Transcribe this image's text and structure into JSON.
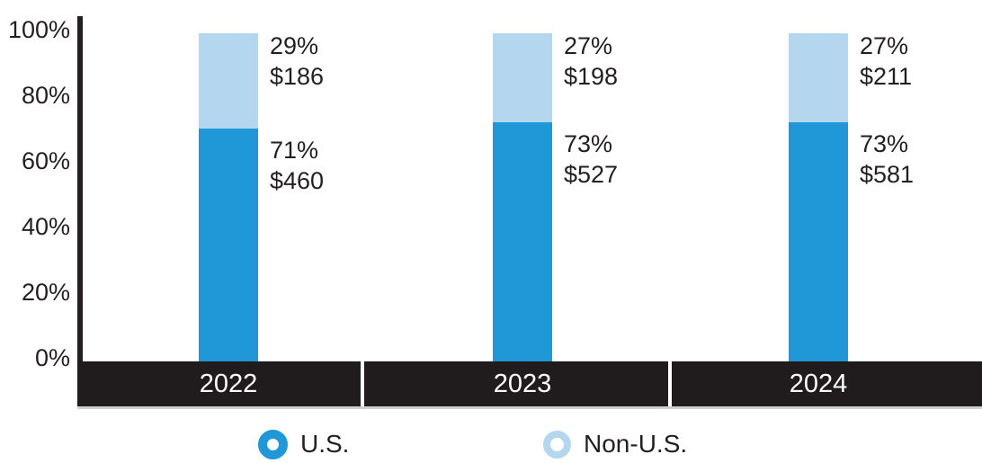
{
  "chart_data": {
    "type": "bar",
    "stacked": true,
    "title": "",
    "xlabel": "",
    "ylabel": "",
    "categories": [
      "2022",
      "2023",
      "2024"
    ],
    "series": [
      {
        "name": "U.S.",
        "color": "#2098d8",
        "values": [
          71,
          73,
          73
        ],
        "pct_labels": [
          "71%",
          "73%",
          "73%"
        ],
        "amount_labels": [
          "$460",
          "$527",
          "$581"
        ]
      },
      {
        "name": "Non-U.S.",
        "color": "#b5d6ef",
        "values": [
          29,
          27,
          27
        ],
        "pct_labels": [
          "29%",
          "27%",
          "27%"
        ],
        "amount_labels": [
          "$186",
          "$198",
          "$211"
        ]
      }
    ],
    "y_axis": {
      "ticks": [
        {
          "label": "100%",
          "value": 100
        },
        {
          "label": "80%",
          "value": 80
        },
        {
          "label": "60%",
          "value": 60
        },
        {
          "label": "40%",
          "value": 40
        },
        {
          "label": "20%",
          "value": 20
        },
        {
          "label": "0%",
          "value": 0
        }
      ]
    },
    "ylim": [
      0,
      100
    ],
    "grid": false,
    "legend_position": "bottom"
  },
  "colors": {
    "us": "#2098d8",
    "non_us": "#b5d6ef",
    "axis": "#231f20",
    "label_text": "#231f20",
    "band_background": "#201c1d",
    "band_text": "#ffffff",
    "band_separator": "#ffffff",
    "band_underline": "#cfcfcf"
  },
  "legend": {
    "items": [
      {
        "label": "U.S."
      },
      {
        "label": "Non-U.S."
      }
    ]
  }
}
